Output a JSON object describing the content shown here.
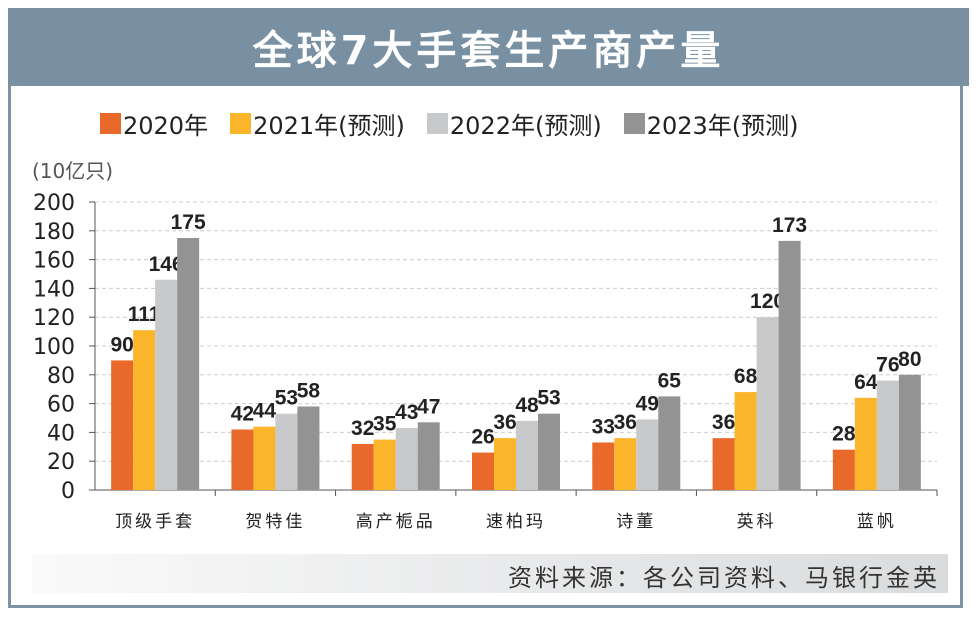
{
  "title": "全球7大手套生产商产量",
  "source": "资料来源：各公司资料、马银行金英",
  "chart_data": {
    "type": "bar",
    "title": "全球7大手套生产商产量",
    "ylabel": "(10亿只)",
    "xlabel": "",
    "ylim": [
      0,
      200
    ],
    "yticks": [
      0,
      20,
      40,
      60,
      80,
      100,
      120,
      140,
      160,
      180,
      200
    ],
    "grid": true,
    "legend_position": "top",
    "categories": [
      "顶级手套",
      "贺特佳",
      "高产栀品",
      "速柏玛",
      "诗董",
      "英科",
      "蓝帆"
    ],
    "series": [
      {
        "name": "2020年",
        "color": "#e8692a",
        "values": [
          90,
          42,
          32,
          26,
          33,
          36,
          28
        ]
      },
      {
        "name": "2021年(预测)",
        "color": "#fbb52b",
        "values": [
          111,
          44,
          35,
          36,
          36,
          68,
          64
        ]
      },
      {
        "name": "2022年(预测)",
        "color": "#c8c9cb",
        "values": [
          146,
          53,
          43,
          48,
          49,
          120,
          76
        ]
      },
      {
        "name": "2023年(预测)",
        "color": "#939393",
        "values": [
          175,
          58,
          47,
          53,
          65,
          173,
          80
        ]
      }
    ]
  }
}
